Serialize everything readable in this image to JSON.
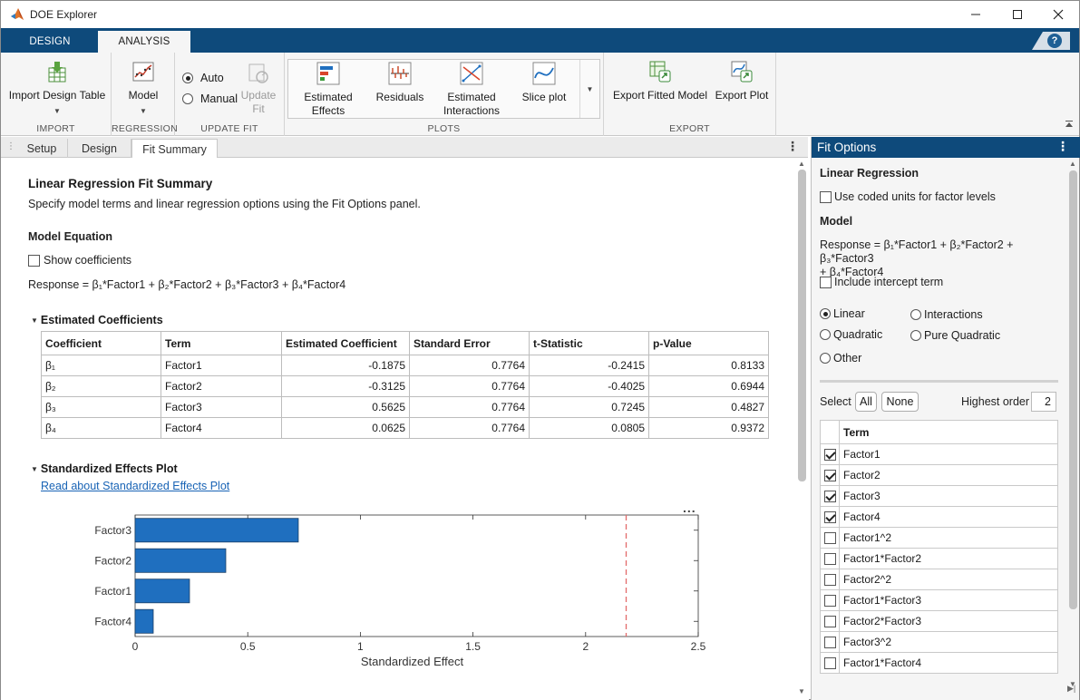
{
  "window": {
    "title": "DOE Explorer",
    "controls": [
      "minimize",
      "maximize",
      "close"
    ]
  },
  "ribbon": {
    "tabs": [
      "DESIGN",
      "ANALYSIS"
    ],
    "active_tab": "ANALYSIS",
    "help_icon": "?",
    "sections": {
      "import": {
        "label": "IMPORT",
        "import_design_table": "Import Design Table"
      },
      "regression": {
        "label": "REGRESSION",
        "model": "Model"
      },
      "update_fit": {
        "label": "UPDATE FIT",
        "auto": "Auto",
        "manual": "Manual",
        "update_fit_line1": "Update",
        "update_fit_line2": "Fit",
        "selected": "Auto"
      },
      "plots": {
        "label": "PLOTS",
        "estimated_effects_line1": "Estimated",
        "estimated_effects_line2": "Effects",
        "residuals": "Residuals",
        "estimated_interactions_line1": "Estimated",
        "estimated_interactions_line2": "Interactions",
        "slice_plot": "Slice plot"
      },
      "export": {
        "label": "EXPORT",
        "export_fitted_model": "Export Fitted Model",
        "export_plot": "Export Plot"
      }
    }
  },
  "doc_tabs": [
    "Setup",
    "Design",
    "Fit Summary"
  ],
  "active_doc_tab": "Fit Summary",
  "summary": {
    "title": "Linear Regression Fit Summary",
    "description": "Specify model terms and linear regression options using the Fit Options panel.",
    "model_equation_heading": "Model Equation",
    "show_coefficients_label": "Show coefficients",
    "show_coefficients_checked": false,
    "equation": "Response = β₁*Factor1 + β₂*Factor2 + β₃*Factor3 + β₄*Factor4",
    "coefficients_heading": "Estimated Coefficients",
    "table": {
      "columns": [
        "Coefficient",
        "Term",
        "Estimated Coefficient",
        "Standard Error",
        "t-Statistic",
        "p-Value"
      ],
      "rows": [
        [
          "β₁",
          "Factor1",
          "-0.1875",
          "0.7764",
          "-0.2415",
          "0.8133"
        ],
        [
          "β₂",
          "Factor2",
          "-0.3125",
          "0.7764",
          "-0.4025",
          "0.6944"
        ],
        [
          "β₃",
          "Factor3",
          "0.5625",
          "0.7764",
          "0.7245",
          "0.4827"
        ],
        [
          "β₄",
          "Factor4",
          "0.0625",
          "0.7764",
          "0.0805",
          "0.9372"
        ]
      ]
    },
    "effects_heading": "Standardized Effects Plot",
    "effects_link": "Read about Standardized Effects Plot",
    "more_options": "..."
  },
  "chart_data": {
    "type": "bar",
    "orientation": "horizontal",
    "categories": [
      "Factor3",
      "Factor2",
      "Factor1",
      "Factor4"
    ],
    "values": [
      0.7245,
      0.4025,
      0.2415,
      0.0805
    ],
    "xlabel": "Standardized Effect",
    "ylabel": "",
    "xlim": [
      0,
      2.5
    ],
    "xticks": [
      "0",
      "0.5",
      "1",
      "1.5",
      "2",
      "2.5"
    ],
    "threshold": 2.18,
    "threshold_style": "dashed red vertical line",
    "bar_color": "#1f6fbf",
    "threshold_color": "#e36a6a",
    "grid": false
  },
  "fit_options": {
    "title": "Fit Options",
    "linear_regression_heading": "Linear Regression",
    "coded_units_label": "Use coded units for factor levels",
    "coded_units_checked": false,
    "model_heading": "Model",
    "equation_line1": "Response = β₁*Factor1 + β₂*Factor2 + β₃*Factor3",
    "equation_line2": "+ β₄*Factor4",
    "intercept_label": "Include intercept term",
    "intercept_checked": false,
    "model_types": {
      "linear": "Linear",
      "interactions": "Interactions",
      "quadratic": "Quadratic",
      "pure_quadratic": "Pure Quadratic",
      "other": "Other"
    },
    "selected_model_type": "Linear",
    "select_label": "Select",
    "all_button": "All",
    "none_button": "None",
    "highest_order_label": "Highest order",
    "highest_order_value": "2",
    "term_header": "Term",
    "terms": [
      {
        "name": "Factor1",
        "checked": true
      },
      {
        "name": "Factor2",
        "checked": true
      },
      {
        "name": "Factor3",
        "checked": true
      },
      {
        "name": "Factor4",
        "checked": true
      },
      {
        "name": "Factor1^2",
        "checked": false
      },
      {
        "name": "Factor1*Factor2",
        "checked": false
      },
      {
        "name": "Factor2^2",
        "checked": false
      },
      {
        "name": "Factor1*Factor3",
        "checked": false
      },
      {
        "name": "Factor2*Factor3",
        "checked": false
      },
      {
        "name": "Factor3^2",
        "checked": false
      },
      {
        "name": "Factor1*Factor4",
        "checked": false
      }
    ]
  },
  "colors": {
    "ribbon_blue": "#0e4a7b",
    "link_blue": "#1863b5",
    "bar_blue": "#1f6fbf"
  }
}
